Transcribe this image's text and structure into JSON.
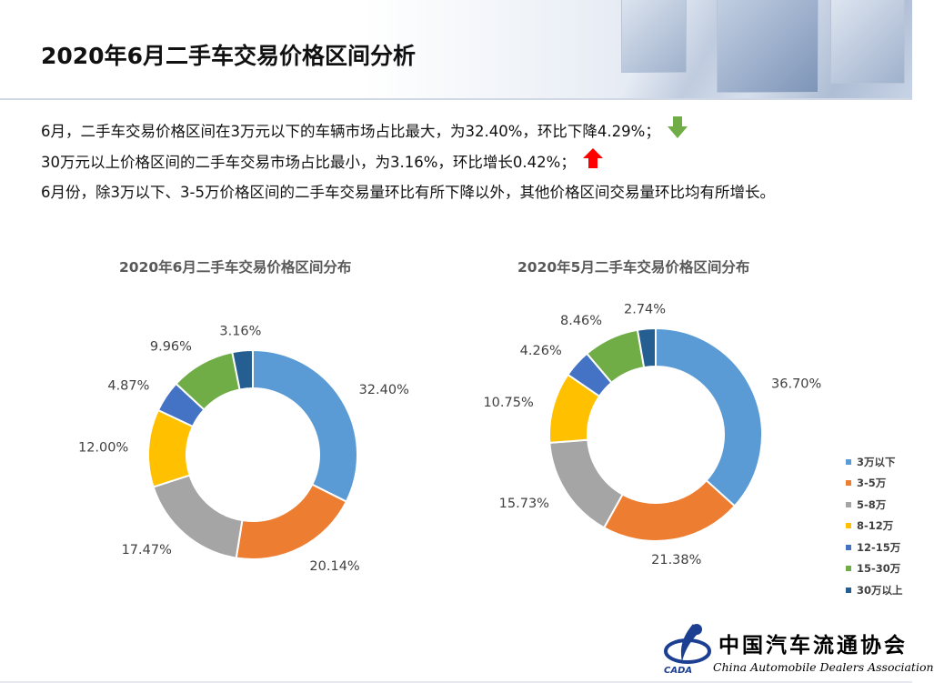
{
  "slide": {
    "title": "2020年6月二手车交易价格区间分析",
    "summary": [
      "6月，二手车交易价格区间在3万元以下的车辆市场占比最大，为32.40%，环比下降4.29%；",
      "30万元以上价格区间的二手车交易市场占比最小，为3.16%，环比增长0.42%；",
      "6月份，除3万以下、3-5万价格区间的二手车交易量环比有所下降以外，其他价格区间交易量环比均有所增长。"
    ],
    "indicators": {
      "down_color": "#70ad47",
      "up_color": "#ff0000"
    }
  },
  "colors": [
    "#5b9bd5",
    "#ed7d31",
    "#a5a5a5",
    "#ffc000",
    "#4472c4",
    "#70ad47",
    "#255e91"
  ],
  "chart_data": [
    {
      "type": "pie",
      "donut": true,
      "title": "2020年6月二手车交易价格区间分布",
      "categories": [
        "3万以下",
        "3-5万",
        "5-8万",
        "8-12万",
        "12-15万",
        "15-30万",
        "30万以上"
      ],
      "values": [
        32.4,
        20.14,
        17.47,
        12.0,
        4.87,
        9.96,
        3.16
      ],
      "labels": [
        "32.40%",
        "20.14%",
        "17.47%",
        "12.00%",
        "4.87%",
        "9.96%",
        "3.16%"
      ],
      "unit": "%"
    },
    {
      "type": "pie",
      "donut": true,
      "title": "2020年5月二手车交易价格区间分布",
      "categories": [
        "3万以下",
        "3-5万",
        "5-8万",
        "8-12万",
        "12-15万",
        "15-30万",
        "30万以上"
      ],
      "values": [
        36.7,
        21.38,
        15.73,
        10.75,
        4.26,
        8.46,
        2.74
      ],
      "labels": [
        "36.70%",
        "21.38%",
        "15.73%",
        "10.75%",
        "4.26%",
        "8.46%",
        "2.74%"
      ],
      "unit": "%",
      "legend_position": "right"
    }
  ],
  "logo": {
    "cn": "中国汽车流通协会",
    "en": "China Automobile Dealers Association",
    "abbr": "CADA"
  }
}
